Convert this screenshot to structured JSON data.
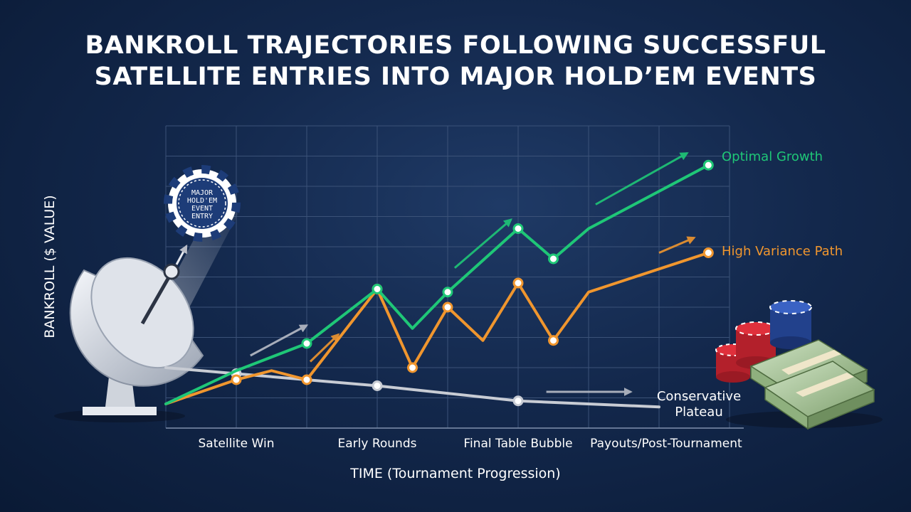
{
  "chart_data": {
    "type": "line",
    "title_lines": [
      "BANKROLL TRAJECTORIES FOLLOWING SUCCESSFUL",
      "SATELLITE ENTRIES INTO MAJOR HOLD’EM EVENTS"
    ],
    "xlabel": "TIME (Tournament Progression)",
    "ylabel": "BANKROLL ($ VALUE)",
    "categories": [
      "Satellite Win",
      "Early Rounds",
      "Final Table Bubble",
      "Payouts/Post-Tournament"
    ],
    "xlim": [
      0,
      8
    ],
    "ylim": [
      0,
      10
    ],
    "grid": true,
    "legend": "inline-right",
    "series": [
      {
        "name": "Optimal Growth",
        "color": "#1fc777",
        "x": [
          0,
          1,
          2,
          3,
          3.5,
          4,
          5,
          5.5,
          6,
          7.7
        ],
        "y": [
          0.8,
          1.9,
          2.8,
          4.6,
          3.3,
          4.5,
          6.6,
          5.6,
          6.6,
          8.7
        ],
        "markers": [
          2,
          3,
          5,
          6,
          7,
          9
        ]
      },
      {
        "name": "High Variance Path",
        "color": "#f0962e",
        "x": [
          0,
          1,
          1.5,
          2,
          3,
          3.5,
          4,
          4.5,
          5,
          5.5,
          6,
          7.7
        ],
        "y": [
          0.8,
          1.6,
          1.9,
          1.6,
          4.6,
          2.0,
          4.0,
          2.9,
          4.8,
          2.9,
          4.5,
          5.8
        ],
        "markers": [
          1,
          3,
          4,
          5,
          6,
          8,
          9,
          11
        ]
      },
      {
        "name": "Conservative Plateau",
        "color": "#c8ccd4",
        "x": [
          0,
          1,
          3,
          5,
          7
        ],
        "y": [
          2.0,
          1.8,
          1.4,
          0.9,
          0.7
        ],
        "markers": [
          1,
          2,
          3
        ]
      }
    ],
    "series_label_lines": {
      "Conservative Plateau": [
        "Conservative",
        "Plateau"
      ]
    }
  },
  "illustration": {
    "chip_text": [
      "MAJOR",
      "HOLD'EM",
      "EVENT",
      "ENTRY"
    ],
    "left_icon": "satellite-dish-icon",
    "right_icon": "poker-chips-and-cash-icon"
  },
  "colors": {
    "background": "#13284c",
    "grid": "#3b5278",
    "optimal": "#1fc777",
    "variance": "#f0962e",
    "conservative": "#c8ccd4",
    "chip": "#1d3c78"
  }
}
